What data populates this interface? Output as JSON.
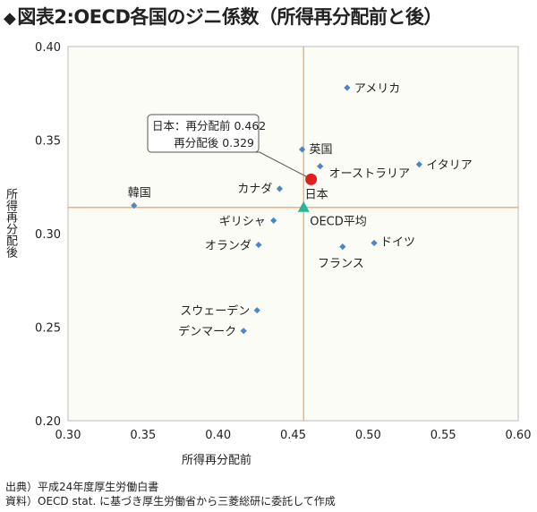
{
  "title": {
    "marker": "◆",
    "text": "図表2:OECD各国のジニ係数（所得再分配前と後）"
  },
  "chart_data": {
    "type": "scatter",
    "title": "図表2:OECD各国のジニ係数（所得再分配前と後）",
    "xlabel": "所得再分配前",
    "ylabel": "所得再分配後",
    "xlim": [
      0.3,
      0.6
    ],
    "ylim": [
      0.2,
      0.4
    ],
    "xticks": [
      "0.30",
      "0.35",
      "0.40",
      "0.45",
      "0.50",
      "0.55",
      "0.60"
    ],
    "yticks": [
      "0.20",
      "0.25",
      "0.30",
      "0.35",
      "0.40"
    ],
    "grid": false,
    "reference_lines": {
      "x": 0.457,
      "y": 0.314
    },
    "points": [
      {
        "name": "アメリカ",
        "x": 0.486,
        "y": 0.378
      },
      {
        "name": "英国",
        "x": 0.456,
        "y": 0.345
      },
      {
        "name": "オーストラリア",
        "x": 0.468,
        "y": 0.336
      },
      {
        "name": "イタリア",
        "x": 0.534,
        "y": 0.337
      },
      {
        "name": "カナダ",
        "x": 0.441,
        "y": 0.324
      },
      {
        "name": "韓国",
        "x": 0.344,
        "y": 0.315
      },
      {
        "name": "ギリシャ",
        "x": 0.437,
        "y": 0.307
      },
      {
        "name": "オランダ",
        "x": 0.427,
        "y": 0.294
      },
      {
        "name": "フランス",
        "x": 0.483,
        "y": 0.293
      },
      {
        "name": "ドイツ",
        "x": 0.504,
        "y": 0.295
      },
      {
        "name": "スウェーデン",
        "x": 0.426,
        "y": 0.259
      },
      {
        "name": "デンマーク",
        "x": 0.417,
        "y": 0.248
      }
    ],
    "highlight_points": [
      {
        "name": "日本",
        "x": 0.462,
        "y": 0.329,
        "marker": "circle",
        "color": "#e02020"
      },
      {
        "name": "OECD平均",
        "x": 0.457,
        "y": 0.314,
        "marker": "triangle",
        "color": "#2ab39a"
      }
    ],
    "callout": {
      "line1": "日本：再分配前 0.462",
      "line2": "再分配後 0.329"
    },
    "colors": {
      "point": "#4a86c8",
      "reference_line": "#f0b070",
      "plot_background": "#fcfcf6",
      "plot_border": "#bbbbbb"
    }
  },
  "notes": {
    "source": "出典）平成24年度厚生労働白書",
    "material": "資料）OECD stat. に基づき厚生労働省から三菱総研に委託して作成"
  }
}
